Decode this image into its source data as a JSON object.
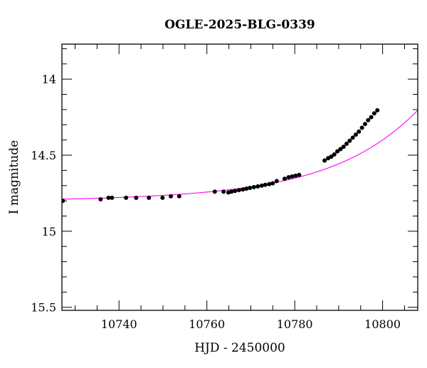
{
  "chart_data": {
    "type": "scatter",
    "title": "OGLE-2025-BLG-0339",
    "xlabel": "HJD - 2450000",
    "ylabel": "I magnitude",
    "xlim": [
      10727,
      10808
    ],
    "ylim": [
      15.52,
      13.77
    ],
    "y_inverted": true,
    "x_ticks": [
      10740,
      10760,
      10780,
      10800
    ],
    "x_tick_labels": [
      "10740",
      "10760",
      "10780",
      "10800"
    ],
    "y_ticks": [
      14,
      14.5,
      15,
      15.5
    ],
    "y_tick_labels": [
      "14",
      "14.5",
      "15",
      "15.5"
    ],
    "x_minor_step": 5,
    "y_minor_step": 0.1,
    "grid": false,
    "colors": {
      "points": "#000000",
      "model": "#ff00ff",
      "axes": "#000000"
    },
    "series": [
      {
        "kind": "points",
        "x": [
          10727.2,
          10735.8,
          10737.6,
          10738.4,
          10741.6,
          10743.9,
          10746.8,
          10749.9,
          10751.8,
          10753.7,
          10761.8,
          10763.8,
          10764.9,
          10765.6,
          10766.4,
          10767.3,
          10768.2,
          10769.0,
          10769.8,
          10770.7,
          10771.6,
          10772.5,
          10773.3,
          10774.2,
          10775.0,
          10775.9,
          10777.7,
          10778.6,
          10779.4,
          10780.2,
          10781.0,
          10786.8,
          10787.6,
          10788.3,
          10789.0,
          10789.7,
          10790.4,
          10791.1,
          10791.8,
          10792.5,
          10793.2,
          10793.9,
          10794.6,
          10795.3,
          10796.0,
          10796.7,
          10797.4,
          10798.1,
          10798.8
        ],
        "y": [
          14.8,
          14.79,
          14.78,
          14.78,
          14.78,
          14.78,
          14.78,
          14.78,
          14.77,
          14.77,
          14.74,
          14.74,
          14.745,
          14.74,
          14.735,
          14.73,
          14.725,
          14.72,
          14.715,
          14.71,
          14.705,
          14.7,
          14.695,
          14.69,
          14.685,
          14.67,
          14.655,
          14.645,
          14.64,
          14.635,
          14.63,
          14.535,
          14.52,
          14.51,
          14.495,
          14.475,
          14.46,
          14.445,
          14.425,
          14.405,
          14.385,
          14.365,
          14.345,
          14.32,
          14.295,
          14.27,
          14.25,
          14.225,
          14.205
        ]
      },
      {
        "kind": "model",
        "t0": 10827.5,
        "tE": 35,
        "u0": 0.36,
        "I_base": 14.81
      }
    ]
  }
}
